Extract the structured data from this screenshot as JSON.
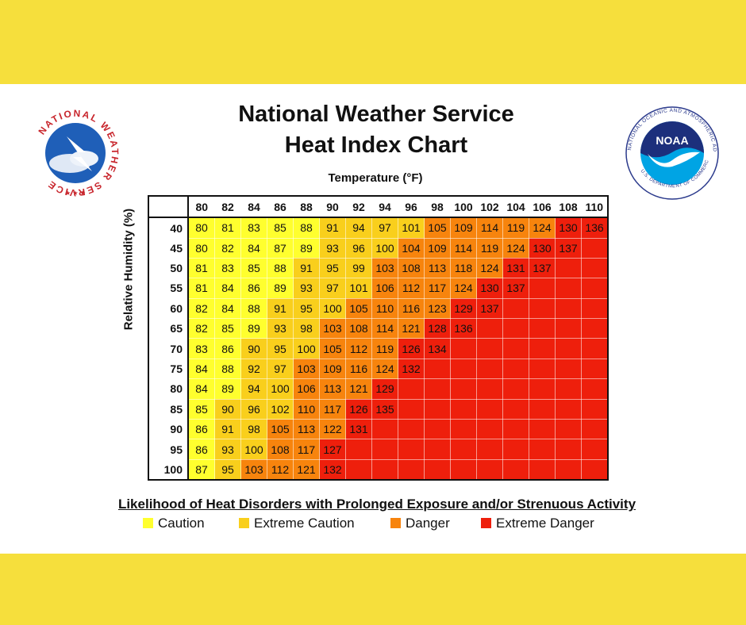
{
  "header": {
    "title_line1": "National Weather Service",
    "title_line2": "Heat Index Chart"
  },
  "logos": {
    "nws_text": "NATIONAL WEATHER SERVICE",
    "noaa_ring": "NATIONAL OCEANIC AND ATMOSPHERIC ADMINISTRATION",
    "noaa_bottom": "U.S. DEPARTMENT OF COMMERCE",
    "noaa_center": "NOAA"
  },
  "chart_data": {
    "type": "heatmap",
    "title": "National Weather Service Heat Index Chart",
    "xlabel": "Temperature (°F)",
    "ylabel": "Relative Humidity (%)",
    "temperatures": [
      80,
      82,
      84,
      86,
      88,
      90,
      92,
      94,
      96,
      98,
      100,
      102,
      104,
      106,
      108,
      110
    ],
    "humidity": [
      40,
      45,
      50,
      55,
      60,
      65,
      70,
      75,
      80,
      85,
      90,
      95,
      100
    ],
    "values": [
      [
        80,
        81,
        83,
        85,
        88,
        91,
        94,
        97,
        101,
        105,
        109,
        114,
        119,
        124,
        130,
        136
      ],
      [
        80,
        82,
        84,
        87,
        89,
        93,
        96,
        100,
        104,
        109,
        114,
        119,
        124,
        130,
        137,
        null
      ],
      [
        81,
        83,
        85,
        88,
        91,
        95,
        99,
        103,
        108,
        113,
        118,
        124,
        131,
        137,
        null,
        null
      ],
      [
        81,
        84,
        86,
        89,
        93,
        97,
        101,
        106,
        112,
        117,
        124,
        130,
        137,
        null,
        null,
        null
      ],
      [
        82,
        84,
        88,
        91,
        95,
        100,
        105,
        110,
        116,
        123,
        129,
        137,
        null,
        null,
        null,
        null
      ],
      [
        82,
        85,
        89,
        93,
        98,
        103,
        108,
        114,
        121,
        128,
        136,
        null,
        null,
        null,
        null,
        null
      ],
      [
        83,
        86,
        90,
        95,
        100,
        105,
        112,
        119,
        126,
        134,
        null,
        null,
        null,
        null,
        null,
        null
      ],
      [
        84,
        88,
        92,
        97,
        103,
        109,
        116,
        124,
        132,
        null,
        null,
        null,
        null,
        null,
        null,
        null
      ],
      [
        84,
        89,
        94,
        100,
        106,
        113,
        121,
        129,
        null,
        null,
        null,
        null,
        null,
        null,
        null,
        null
      ],
      [
        85,
        90,
        96,
        102,
        110,
        117,
        126,
        135,
        null,
        null,
        null,
        null,
        null,
        null,
        null,
        null
      ],
      [
        86,
        91,
        98,
        105,
        113,
        122,
        131,
        null,
        null,
        null,
        null,
        null,
        null,
        null,
        null,
        null
      ],
      [
        86,
        93,
        100,
        108,
        117,
        127,
        null,
        null,
        null,
        null,
        null,
        null,
        null,
        null,
        null,
        null
      ],
      [
        87,
        95,
        103,
        112,
        121,
        132,
        null,
        null,
        null,
        null,
        null,
        null,
        null,
        null,
        null,
        null
      ]
    ],
    "categories_legend": [
      {
        "name": "Caution",
        "color": "#ffff2e"
      },
      {
        "name": "Extreme Caution",
        "color": "#f9cf1c"
      },
      {
        "name": "Danger",
        "color": "#f7840d"
      },
      {
        "name": "Extreme Danger",
        "color": "#ee1f0c"
      }
    ],
    "thresholds": [
      90,
      103,
      125
    ]
  },
  "legend": {
    "title": "Likelihood of Heat Disorders with Prolonged Exposure and/or Strenuous Activity"
  }
}
